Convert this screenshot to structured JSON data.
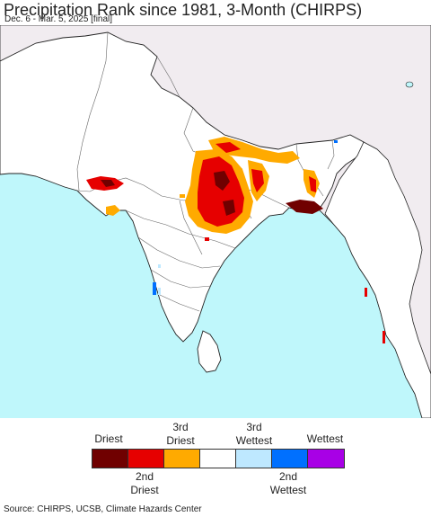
{
  "title": "Precipitation Rank since 1981, 3-Month (CHIRPS)",
  "subtitle": "Dec. 6 - Mar. 5, 2025 [final]",
  "colors": {
    "ocean": "#bff7fb",
    "land_outside": "#f1ecf0",
    "land_region": "#ffffff",
    "border": "#555555",
    "coast": "#222222"
  },
  "legend": {
    "top_labels": [
      {
        "lines": [
          "Driest"
        ]
      },
      {
        "lines": [
          "3rd",
          "Driest"
        ]
      },
      {
        "lines": [
          "3rd",
          "Wettest"
        ]
      },
      {
        "lines": [
          "Wettest"
        ]
      }
    ],
    "bottom_labels": [
      {
        "lines": [
          "2nd",
          "Driest"
        ]
      },
      {
        "lines": [
          "2nd",
          "Wettest"
        ]
      }
    ],
    "swatches": [
      "#700000",
      "#e60000",
      "#ffaa00",
      "#ffffff",
      "#bee8ff",
      "#0070ff",
      "#a800e6"
    ]
  },
  "source": "Source: CHIRPS, UCSB, Climate Hazards Center"
}
